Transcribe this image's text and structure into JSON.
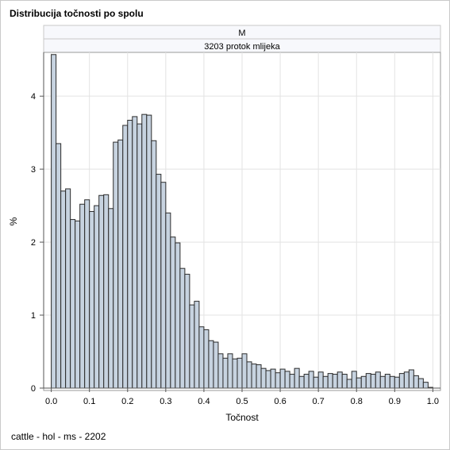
{
  "title": "Distribucija točnosti po spolu",
  "footnote": "cattle - hol - ms - 2202",
  "panel": {
    "row1": "M",
    "row2": "3203 protok mlijeka"
  },
  "colors": {
    "bar_fill": "#c7d3e0",
    "bar_stroke": "#2b2b2b",
    "grid": "#e3e3e3",
    "header_fill": "#f7f8fc"
  },
  "chart_data": {
    "type": "bar",
    "xlabel": "Točnost",
    "ylabel": "%",
    "xlim": [
      -0.02,
      1.02
    ],
    "ylim": [
      0,
      4.6
    ],
    "xticks": [
      0.0,
      0.1,
      0.2,
      0.3,
      0.4,
      0.5,
      0.6,
      0.7,
      0.8,
      0.9,
      1.0
    ],
    "xtick_labels": [
      "0.0",
      "0.1",
      "0.2",
      "0.3",
      "0.4",
      "0.5",
      "0.6",
      "0.7",
      "0.8",
      "0.9",
      "1.0"
    ],
    "yticks": [
      0,
      1,
      2,
      3,
      4
    ],
    "ytick_labels": [
      "0",
      "1",
      "2",
      "3",
      "4"
    ],
    "grid": true,
    "bin_start": 0.0,
    "bin_width": 0.0125,
    "values": [
      4.57,
      3.35,
      2.7,
      2.73,
      2.31,
      2.29,
      2.52,
      2.58,
      2.42,
      2.5,
      2.64,
      2.65,
      2.46,
      3.37,
      3.4,
      3.6,
      3.67,
      3.72,
      3.62,
      3.75,
      3.74,
      3.39,
      2.93,
      2.82,
      2.4,
      2.07,
      1.99,
      1.64,
      1.56,
      1.14,
      1.19,
      0.84,
      0.8,
      0.65,
      0.63,
      0.47,
      0.41,
      0.47,
      0.4,
      0.41,
      0.47,
      0.36,
      0.33,
      0.32,
      0.27,
      0.24,
      0.26,
      0.21,
      0.26,
      0.23,
      0.19,
      0.27,
      0.16,
      0.19,
      0.23,
      0.15,
      0.22,
      0.16,
      0.2,
      0.19,
      0.22,
      0.19,
      0.12,
      0.23,
      0.14,
      0.16,
      0.2,
      0.19,
      0.22,
      0.16,
      0.19,
      0.16,
      0.15,
      0.2,
      0.22,
      0.25,
      0.17,
      0.13,
      0.08,
      0.01
    ]
  }
}
